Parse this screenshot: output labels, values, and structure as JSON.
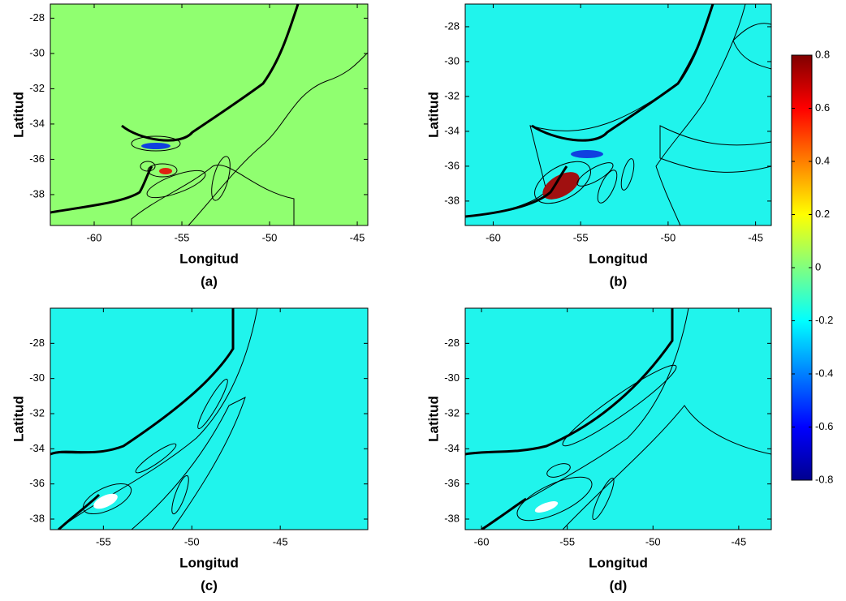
{
  "panels": [
    {
      "caption": "(a)",
      "xlabel": "Longitud",
      "ylabel": "Latitud",
      "xlim": [
        -62.5,
        -44.4
      ],
      "ylim": [
        -39.75,
        -27.2
      ],
      "xticks": [
        -60,
        -55,
        -50,
        -45
      ],
      "yticks": [
        -28,
        -30,
        -32,
        -34,
        -36,
        -38
      ]
    },
    {
      "caption": "(b)",
      "xlabel": "Longitud",
      "ylabel": "Latitud",
      "xlim": [
        -61.6,
        -44.1
      ],
      "ylim": [
        -39.4,
        -26.7
      ],
      "xticks": [
        -60,
        -55,
        -50,
        -45
      ],
      "yticks": [
        -28,
        -30,
        -32,
        -34,
        -36,
        -38
      ]
    },
    {
      "caption": "(c)",
      "xlabel": "Longitud",
      "ylabel": "Latitud",
      "xlim": [
        -58,
        -40.05
      ],
      "ylim": [
        -38.6,
        -26
      ],
      "xticks": [
        -55,
        -50,
        -45
      ],
      "yticks": [
        -28,
        -30,
        -32,
        -34,
        -36,
        -38
      ]
    },
    {
      "caption": "(d)",
      "xlabel": "Longitud",
      "ylabel": "Latitud",
      "xlim": [
        -60.95,
        -43.1
      ],
      "ylim": [
        -38.6,
        -26
      ],
      "xticks": [
        -60,
        -55,
        -50,
        -45
      ],
      "yticks": [
        -28,
        -30,
        -32,
        -34,
        -36,
        -38
      ]
    }
  ],
  "colorbar": {
    "lim": [
      -0.8,
      0.8
    ],
    "ticks": [
      -0.8,
      -0.6,
      -0.4,
      -0.2,
      0,
      0.2,
      0.4,
      0.6,
      0.8
    ]
  }
}
